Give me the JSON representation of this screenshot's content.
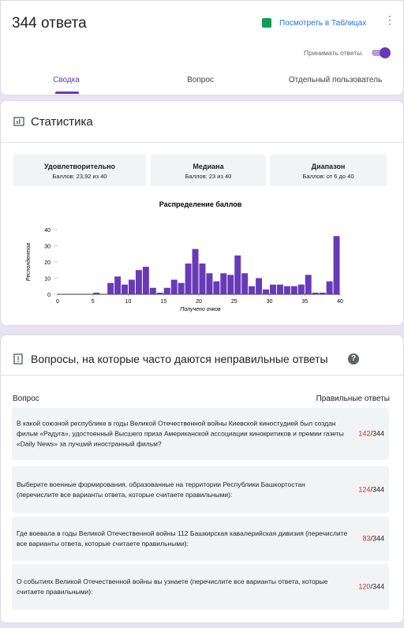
{
  "header": {
    "title": "344 ответа",
    "sheets_link": "Посмотреть в Таблицах",
    "accept_label": "Принимать ответы",
    "tabs": [
      "Сводка",
      "Вопрос",
      "Отдельный пользователь"
    ]
  },
  "stats": {
    "title": "Статистика",
    "cards": [
      {
        "label": "Удовлетворительно",
        "value": "Баллов: 23,92 из 40"
      },
      {
        "label": "Медиана",
        "value": "Баллов: 23 из 40"
      },
      {
        "label": "Диапазон",
        "value": "Баллов: от 6 до 40"
      }
    ],
    "chart_data": {
      "type": "histogram",
      "title": "Распределение баллов",
      "x_label": "Получено очков",
      "y_label": "Респондентов",
      "color": "#673ab7",
      "bins": [
        0,
        1,
        2,
        3,
        4,
        5,
        6,
        7,
        8,
        9,
        10,
        11,
        12,
        13,
        14,
        15,
        16,
        17,
        18,
        19,
        20,
        21,
        22,
        23,
        24,
        25,
        26,
        27,
        28,
        29,
        30,
        31,
        32,
        33,
        34,
        35,
        36,
        37,
        38,
        39,
        40
      ],
      "counts": [
        0,
        0,
        0,
        0,
        0,
        1,
        0,
        7,
        11,
        6,
        9,
        15,
        17,
        4,
        1,
        4,
        9,
        7,
        19,
        28,
        19,
        13,
        8,
        13,
        12,
        24,
        13,
        5,
        10,
        3,
        6,
        6,
        5,
        5,
        6,
        12,
        1,
        1,
        8,
        36
      ],
      "xlim": [
        0,
        40
      ],
      "ylim": [
        0,
        40
      ],
      "xticks": [
        0,
        5,
        10,
        15,
        20,
        25,
        30,
        35,
        40
      ],
      "yticks": [
        0,
        10,
        20,
        30,
        40
      ]
    }
  },
  "questions": {
    "title": "Вопросы, на которые часто даются неправильные ответы",
    "col_question": "Вопрос",
    "col_correct": "Правильные ответы",
    "score_separator": "/",
    "items": [
      {
        "text": "В какой союзной республике в годы Великой Отечественной войны Киевской киностудией был создан фильм «Радуга», удостоенный Высшего приза Американской ассоциации кинокритиков и премии газеты «Daily News» за лучший иностранный фильм?",
        "correct": 142,
        "total": 344
      },
      {
        "text": "Выберите военные формирования, образованные на территории Республики Башкортостан (перечислите все варианты ответа, которые считаете правильными):",
        "correct": 124,
        "total": 344
      },
      {
        "text": "Где воевала в годы Великой Отечественной войны 112 Башкирская кавалерийская дивизия (перечислите все варианты ответа, которые считаете правильными):",
        "correct": 83,
        "total": 344
      },
      {
        "text": "О событиях Великой Отечественной войны вы узнаете (перечислите все варианты ответа, которые считаете правильными):",
        "correct": 120,
        "total": 344
      }
    ]
  }
}
